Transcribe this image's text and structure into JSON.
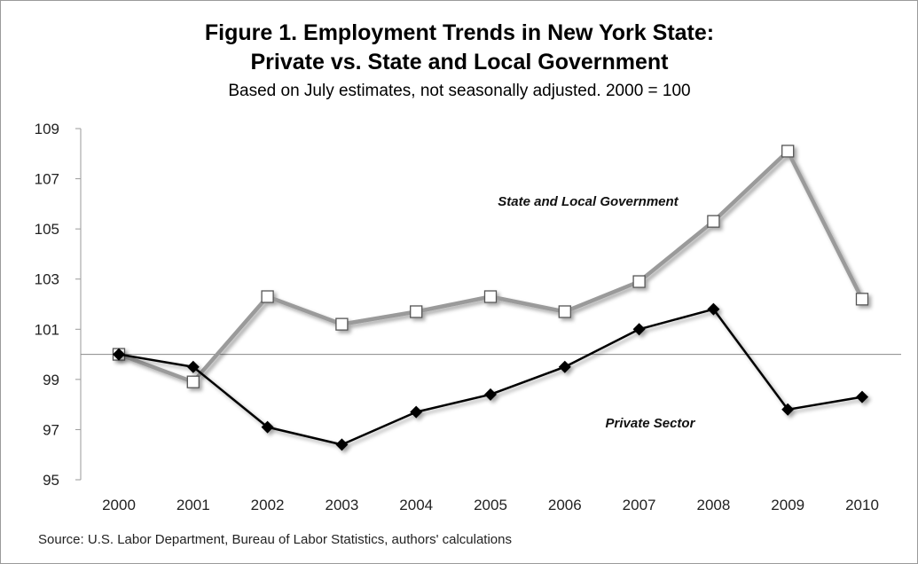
{
  "chart_data": {
    "type": "line",
    "title_line1": "Figure 1. Employment Trends in New York State:",
    "title_line2": "Private vs. State and Local Government",
    "subtitle": "Based on July estimates, not seasonally adjusted. 2000 = 100",
    "source": "Source: U.S. Labor Department, Bureau of Labor Statistics, authors' calculations",
    "x": [
      "2000",
      "2001",
      "2002",
      "2003",
      "2004",
      "2005",
      "2006",
      "2007",
      "2008",
      "2009",
      "2010"
    ],
    "ylim": [
      95,
      109
    ],
    "yticks": [
      "95",
      "97",
      "99",
      "101",
      "103",
      "105",
      "107",
      "109"
    ],
    "reference_line": 100,
    "grid": false,
    "series": [
      {
        "name": "State and Local Government",
        "marker": "square",
        "color": "#9a9a9a",
        "values": [
          100.0,
          98.9,
          102.3,
          101.2,
          101.7,
          102.3,
          101.7,
          102.9,
          105.3,
          108.1,
          102.2
        ]
      },
      {
        "name": "Private Sector",
        "marker": "diamond",
        "color": "#000000",
        "values": [
          100.0,
          99.5,
          97.1,
          96.4,
          97.7,
          98.4,
          99.5,
          101.0,
          101.8,
          97.8,
          98.3
        ]
      }
    ]
  }
}
